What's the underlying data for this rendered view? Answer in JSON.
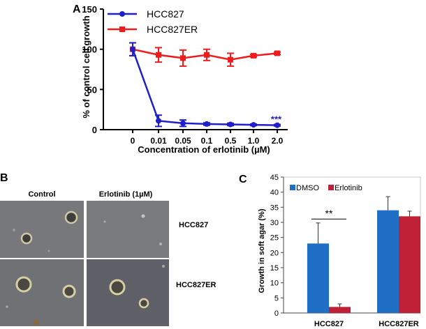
{
  "chart_data": [
    {
      "panel": "A",
      "type": "line",
      "ylabel": "% of control cell growth",
      "xlabel": "Concentration of erlotinib (µM)",
      "categories": [
        "0",
        "0.01",
        "0.05",
        "0.1",
        "0.5",
        "1.0",
        "2.0"
      ],
      "yticks": [
        0,
        50,
        100,
        150
      ],
      "ylim": [
        0,
        150
      ],
      "legend_position": "top-left",
      "annotation": "***",
      "series": [
        {
          "name": "HCC827",
          "color": "#1f1fcc",
          "marker": "circle",
          "values": [
            100,
            11,
            8,
            7,
            6.5,
            6,
            5.5
          ],
          "errors": [
            8,
            7,
            4,
            1.5,
            1.5,
            1,
            1
          ]
        },
        {
          "name": "HCC827ER",
          "color": "#ee1c1c",
          "marker": "square",
          "values": [
            100,
            93,
            89,
            93,
            87,
            92,
            95
          ],
          "errors": [
            8,
            9,
            10,
            7,
            8,
            1.5,
            1.5
          ]
        }
      ]
    },
    {
      "panel": "C",
      "type": "bar",
      "ylabel": "Growth in soft agar (%)",
      "categories": [
        "HCC827",
        "HCC827ER"
      ],
      "yticks": [
        "0",
        "5",
        "10",
        "15",
        "20",
        "25",
        "30",
        "35",
        "40",
        "45"
      ],
      "ylim": [
        0,
        45
      ],
      "legend_position": "top-left",
      "significance": "**",
      "series": [
        {
          "name": "DMSO",
          "color": "#1f6fc6",
          "values": [
            23,
            34
          ],
          "errors": [
            6.8,
            4.5
          ]
        },
        {
          "name": "Erlotinib",
          "color": "#bf2035",
          "values": [
            2,
            32
          ],
          "errors": [
            1,
            1.7
          ]
        }
      ]
    }
  ],
  "panel_b": {
    "letter": "B",
    "col_labels": [
      "Control",
      "Erlotinib (1µM)"
    ],
    "row_labels": [
      "HCC827",
      "HCC827ER"
    ]
  }
}
